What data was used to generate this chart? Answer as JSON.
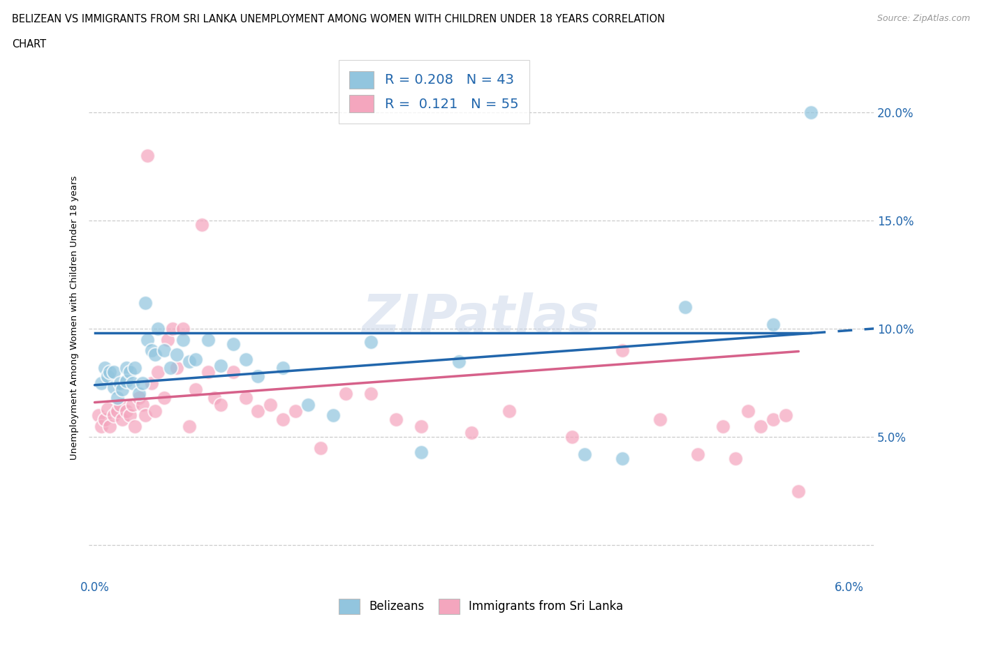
{
  "title_line1": "BELIZEAN VS IMMIGRANTS FROM SRI LANKA UNEMPLOYMENT AMONG WOMEN WITH CHILDREN UNDER 18 YEARS CORRELATION",
  "title_line2": "CHART",
  "source_text": "Source: ZipAtlas.com",
  "ylabel": "Unemployment Among Women with Children Under 18 years",
  "color_belizean": "#92c5de",
  "color_srilanka": "#f4a6be",
  "trendline_belizean_color": "#2166ac",
  "trendline_srilanka_color": "#d6618a",
  "r_belizean": 0.208,
  "n_belizean": 43,
  "r_srilanka": 0.121,
  "n_srilanka": 55,
  "xlim": [
    -0.0005,
    0.062
  ],
  "ylim": [
    -0.015,
    0.225
  ],
  "yticks": [
    0.0,
    0.05,
    0.1,
    0.15,
    0.2
  ],
  "ytick_labels": [
    "",
    "5.0%",
    "10.0%",
    "15.0%",
    "20.0%"
  ],
  "belizean_x": [
    0.0005,
    0.0008,
    0.001,
    0.0012,
    0.0015,
    0.0015,
    0.0018,
    0.002,
    0.0022,
    0.0025,
    0.0025,
    0.0028,
    0.003,
    0.0032,
    0.0035,
    0.0038,
    0.004,
    0.0042,
    0.0045,
    0.0048,
    0.005,
    0.0055,
    0.006,
    0.0065,
    0.007,
    0.0075,
    0.008,
    0.009,
    0.01,
    0.011,
    0.012,
    0.013,
    0.015,
    0.017,
    0.019,
    0.022,
    0.026,
    0.029,
    0.039,
    0.042,
    0.047,
    0.054,
    0.057
  ],
  "belizean_y": [
    0.075,
    0.082,
    0.078,
    0.08,
    0.073,
    0.08,
    0.068,
    0.075,
    0.072,
    0.082,
    0.076,
    0.08,
    0.075,
    0.082,
    0.07,
    0.075,
    0.112,
    0.095,
    0.09,
    0.088,
    0.1,
    0.09,
    0.082,
    0.088,
    0.095,
    0.085,
    0.086,
    0.095,
    0.083,
    0.093,
    0.086,
    0.078,
    0.082,
    0.065,
    0.06,
    0.094,
    0.043,
    0.085,
    0.042,
    0.04,
    0.11,
    0.102,
    0.2
  ],
  "srilanka_x": [
    0.0003,
    0.0005,
    0.0008,
    0.001,
    0.0012,
    0.0015,
    0.0018,
    0.002,
    0.0022,
    0.0025,
    0.0028,
    0.003,
    0.0032,
    0.0035,
    0.0038,
    0.004,
    0.0042,
    0.0045,
    0.0048,
    0.005,
    0.0055,
    0.0058,
    0.0062,
    0.0065,
    0.007,
    0.0075,
    0.008,
    0.0085,
    0.009,
    0.0095,
    0.01,
    0.011,
    0.012,
    0.013,
    0.014,
    0.015,
    0.016,
    0.018,
    0.02,
    0.022,
    0.024,
    0.026,
    0.03,
    0.033,
    0.038,
    0.042,
    0.045,
    0.048,
    0.05,
    0.051,
    0.052,
    0.053,
    0.054,
    0.055,
    0.056
  ],
  "srilanka_y": [
    0.06,
    0.055,
    0.058,
    0.063,
    0.055,
    0.06,
    0.062,
    0.065,
    0.058,
    0.062,
    0.06,
    0.065,
    0.055,
    0.068,
    0.065,
    0.06,
    0.18,
    0.075,
    0.062,
    0.08,
    0.068,
    0.095,
    0.1,
    0.082,
    0.1,
    0.055,
    0.072,
    0.148,
    0.08,
    0.068,
    0.065,
    0.08,
    0.068,
    0.062,
    0.065,
    0.058,
    0.062,
    0.045,
    0.07,
    0.07,
    0.058,
    0.055,
    0.052,
    0.062,
    0.05,
    0.09,
    0.058,
    0.042,
    0.055,
    0.04,
    0.062,
    0.055,
    0.058,
    0.06,
    0.025
  ],
  "trendline_b_x0": 0.0,
  "trendline_b_y0": 0.074,
  "trendline_b_x1": 0.057,
  "trendline_b_y1": 0.098,
  "trendline_s_x0": 0.0,
  "trendline_s_y0": 0.066,
  "trendline_s_x1": 0.057,
  "trendline_s_y1": 0.09
}
